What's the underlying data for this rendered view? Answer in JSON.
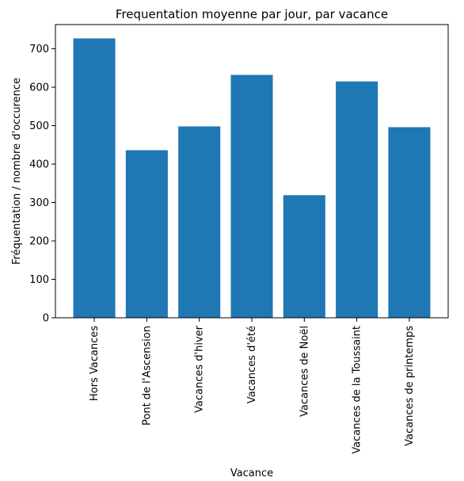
{
  "chart_data": {
    "type": "bar",
    "title": "Frequentation moyenne par jour, par vacance",
    "xlabel": "Vacance",
    "ylabel": "Fréquentation / nombre d'occurence",
    "categories": [
      "Hors Vacances",
      "Pont de l'Ascension",
      "Vacances d'hiver",
      "Vacances d'été",
      "Vacances de Noël",
      "Vacances de la Toussaint",
      "Vacances de printemps"
    ],
    "values": [
      727,
      436,
      498,
      632,
      319,
      615,
      496
    ],
    "ylim": [
      0,
      763
    ],
    "yticks": [
      "0",
      "100",
      "200",
      "300",
      "400",
      "500",
      "600",
      "700"
    ],
    "bar_color": "#1f77b4",
    "grid": false,
    "legend": "none"
  }
}
